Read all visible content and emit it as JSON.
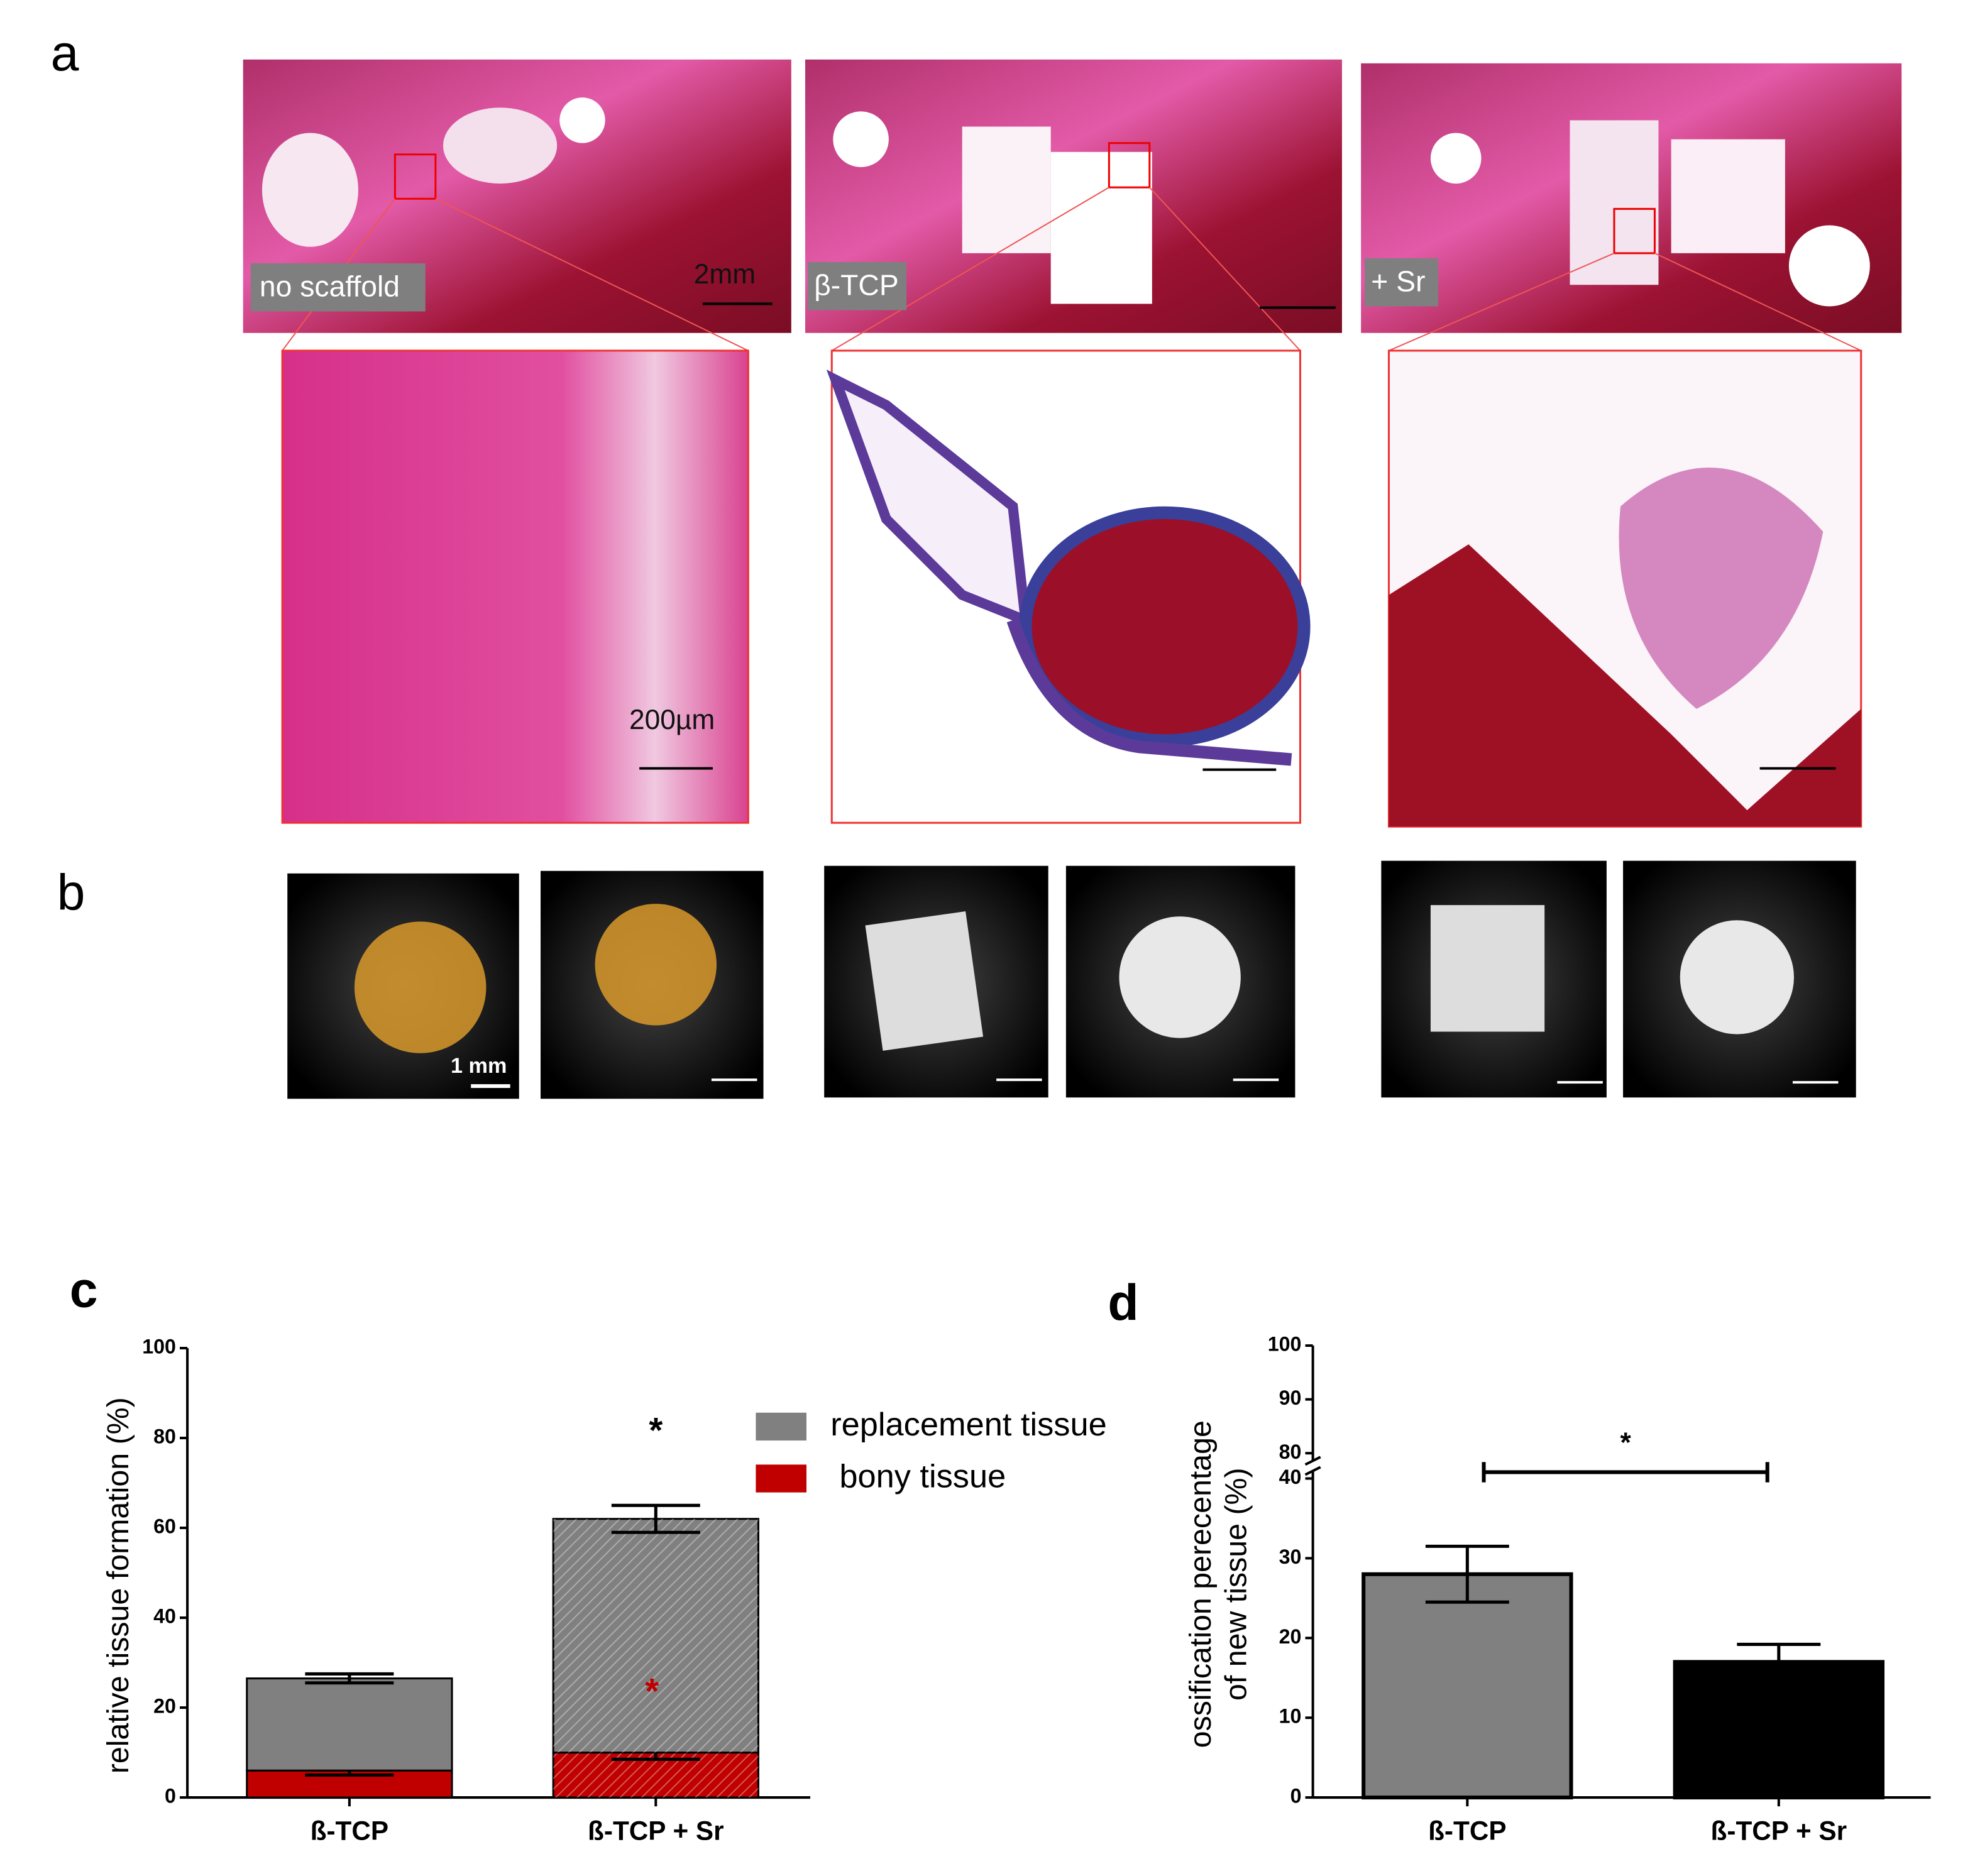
{
  "panels": {
    "a": {
      "label": "a",
      "captions": [
        "no scaffold",
        "β-TCP",
        "+ Sr"
      ],
      "scale_labels": [
        "2mm",
        "200µm"
      ]
    },
    "b": {
      "label": "b",
      "scale_label": "1 mm"
    },
    "c": {
      "label": "c"
    },
    "d": {
      "label": "d"
    }
  },
  "chart_data": [
    {
      "type": "bar",
      "stacked": true,
      "categories": [
        "ß-TCP",
        "ß-TCP + Sr"
      ],
      "hatch": [
        false,
        true
      ],
      "y_label": "relative tissue formation (%)",
      "series": [
        {
          "name": "replacement tissue",
          "color": "#808080",
          "values": [
            20.5,
            52
          ],
          "errors": [
            1,
            3
          ]
        },
        {
          "name": "bony tissue",
          "color": "#c00000",
          "values": [
            6,
            10
          ],
          "errors": [
            1,
            1.5
          ]
        }
      ],
      "ylim": [
        0,
        100
      ],
      "yticks": [
        0,
        20,
        40,
        60,
        80,
        100
      ],
      "legend": "upper right",
      "annotations": [
        {
          "text": "*",
          "color": "#000000"
        },
        {
          "text": "*",
          "color": "#c00000"
        }
      ]
    },
    {
      "type": "bar",
      "categories": [
        "ß-TCP",
        "ß-TCP + Sr"
      ],
      "y_label": [
        "ossification perecentage",
        "of new tissue (%)"
      ],
      "colors": [
        "#808080",
        "#000000"
      ],
      "values": [
        28,
        17
      ],
      "errors": [
        3.5,
        2.2
      ],
      "ylim": [
        0,
        100
      ],
      "ybreak": [
        40,
        80
      ],
      "yticks": [
        0,
        10,
        20,
        30,
        40,
        80,
        90,
        100
      ],
      "significance": "*"
    }
  ]
}
